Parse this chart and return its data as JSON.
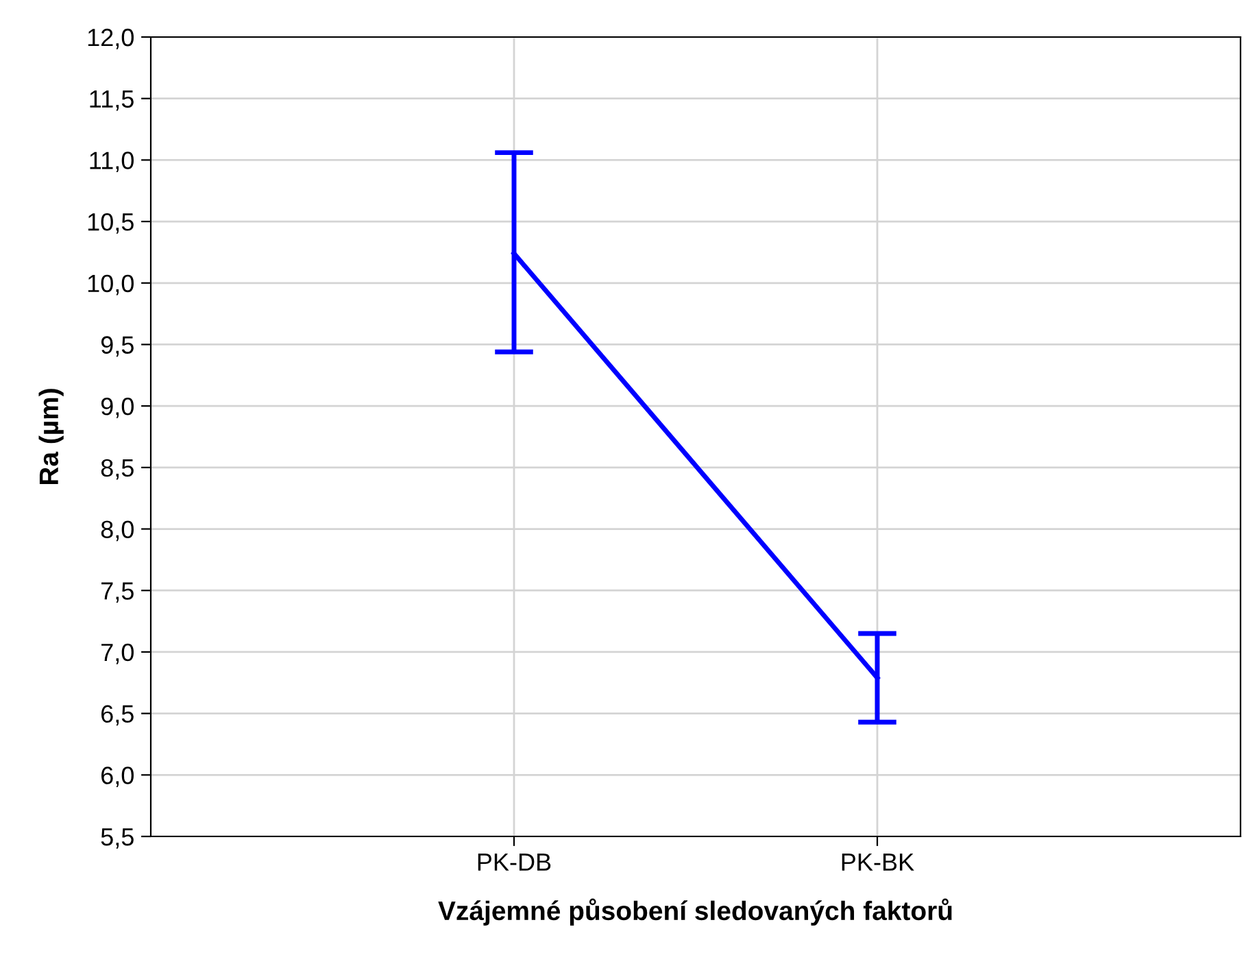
{
  "chart_data": {
    "type": "line",
    "xlabel": "Vzájemné působení sledovaných faktorů",
    "ylabel": "Ra (µm)",
    "categories": [
      "PK-DB",
      "PK-BK"
    ],
    "series": [
      {
        "color": "#0000ff",
        "values": [
          10.24,
          6.79
        ],
        "errors": [
          [
            9.44,
            11.06
          ],
          [
            6.43,
            7.15
          ]
        ]
      }
    ],
    "ylim": [
      5.5,
      12.0
    ],
    "yticks": [
      {
        "value": 5.5,
        "label": "5,5"
      },
      {
        "value": 6.0,
        "label": "6,0"
      },
      {
        "value": 6.5,
        "label": "6,5"
      },
      {
        "value": 7.0,
        "label": "7,0"
      },
      {
        "value": 7.5,
        "label": "7,5"
      },
      {
        "value": 8.0,
        "label": "8,0"
      },
      {
        "value": 8.5,
        "label": "8,5"
      },
      {
        "value": 9.0,
        "label": "9,0"
      },
      {
        "value": 9.5,
        "label": "9,5"
      },
      {
        "value": 10.0,
        "label": "10,0"
      },
      {
        "value": 10.5,
        "label": "10,5"
      },
      {
        "value": 11.0,
        "label": "11,0"
      },
      {
        "value": 11.5,
        "label": "11,5"
      },
      {
        "value": 12.0,
        "label": "12,0"
      }
    ],
    "grid": true
  }
}
